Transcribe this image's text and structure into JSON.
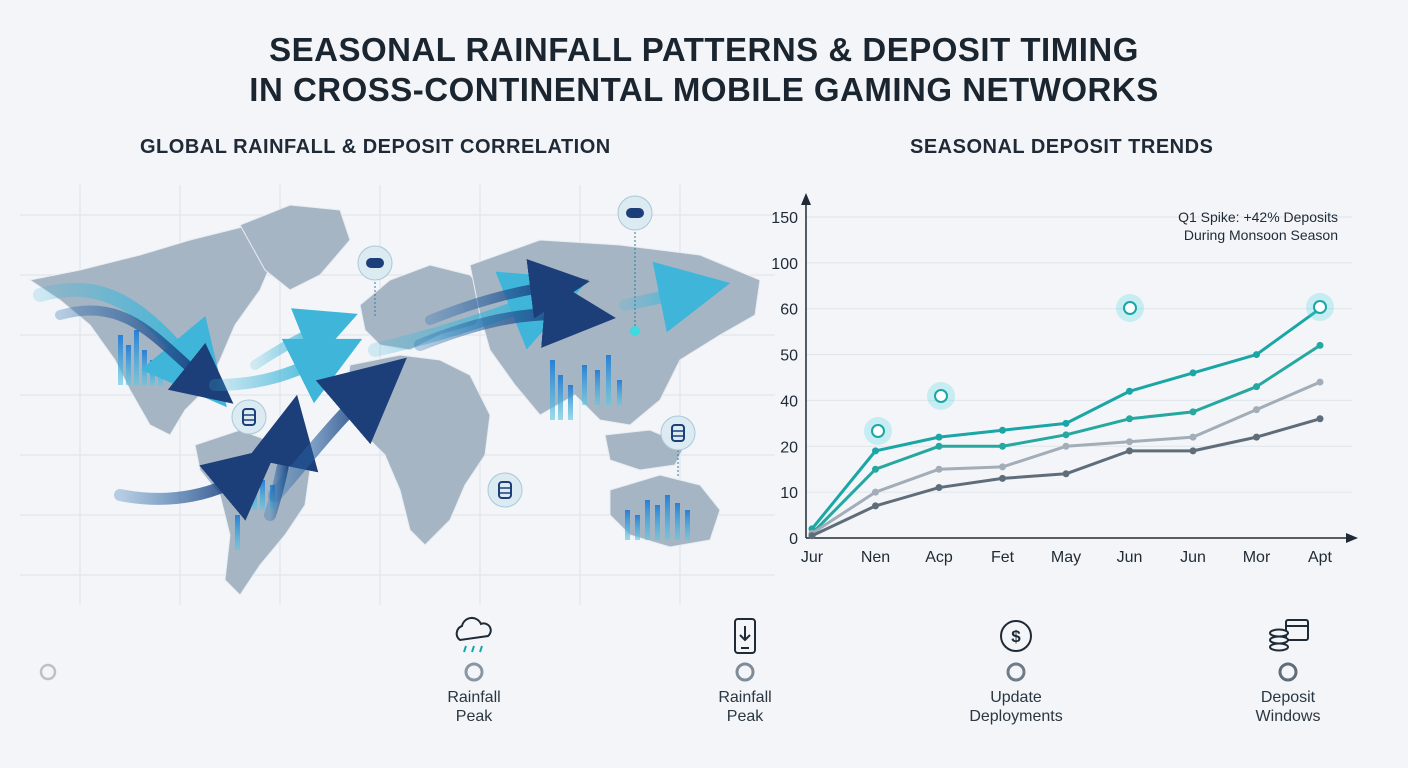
{
  "title_line1": "SEASONAL RAINFALL PATTERNS & DEPOSIT TIMING",
  "title_line2": "IN CROSS-CONTINENTAL MOBILE GAMING NETWORKS",
  "map": {
    "title": "GLOBAL RAINFALL & DEPOSIT CORRELATION",
    "icons": [
      "gamepad-icon",
      "gamepad-icon",
      "database-icon",
      "database-icon",
      "database-icon"
    ],
    "colors": {
      "land": "#9fb0c0",
      "arrow_light": "#3fb6d9",
      "arrow_dark": "#1c3f7a",
      "bars": "#2a7fd4"
    }
  },
  "chart_data": {
    "type": "line",
    "title": "SEASONAL DEPOSIT TRENDS",
    "categories": [
      "Jur",
      "Nen",
      "Acp",
      "Fet",
      "May",
      "Jun",
      "Jun",
      "Mor",
      "Apt"
    ],
    "y_ticks": [
      "0",
      "10",
      "20",
      "40",
      "50",
      "60",
      "100",
      "150"
    ],
    "ylim": [
      0,
      150
    ],
    "series": [
      {
        "color": "#1aa6a6",
        "values": [
          2,
          19,
          24,
          27,
          30,
          42,
          46,
          50,
          60
        ]
      },
      {
        "color": "#26a8a0",
        "values": [
          1,
          15,
          20,
          20,
          25,
          32,
          35,
          43,
          52
        ]
      },
      {
        "color": "#a3adb8",
        "values": [
          1,
          10,
          15,
          15.5,
          20,
          22,
          24,
          36,
          44
        ]
      },
      {
        "color": "#5f6d7a",
        "values": [
          0.5,
          7,
          11,
          13,
          14,
          19,
          19,
          24,
          32
        ]
      }
    ],
    "annotation": [
      "Q1 Spike: +42% Deposits",
      "During Monsoon Season"
    ],
    "grid": true
  },
  "timeline": {
    "milestones": [
      {
        "icon": "rain-cloud-icon",
        "label_line1": "Rainfall",
        "label_line2": "Peak"
      },
      {
        "icon": "phone-download-icon",
        "label_line1": "Rainfall",
        "label_line2": "Peak"
      },
      {
        "icon": "dollar-refresh-icon",
        "label_line1": "Update",
        "label_line2": "Deployments"
      },
      {
        "icon": "coins-calendar-icon",
        "label_line1": "Deposit",
        "label_line2": "Windows"
      }
    ]
  }
}
